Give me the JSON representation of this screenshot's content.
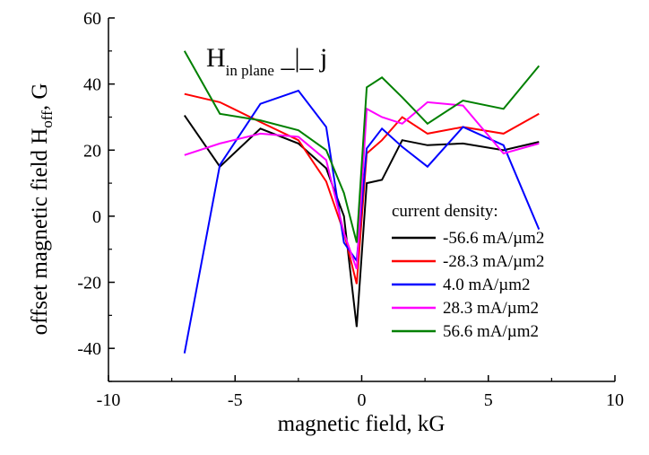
{
  "chart_data": {
    "type": "line",
    "xlabel": "magnetic field, kG",
    "ylabel_main": "offset magnetic field H",
    "ylabel_sub": "off",
    "ylabel_tail": ", G",
    "xlim": [
      -10,
      10
    ],
    "ylim": [
      -50,
      60
    ],
    "xticks": [
      -10,
      -5,
      0,
      5,
      10
    ],
    "yticks": [
      -40,
      -20,
      0,
      20,
      40,
      60
    ],
    "grid": false,
    "annotation": {
      "main": "H",
      "sub": "in plane",
      "tail": " _|_ j"
    },
    "legend": {
      "title": "current density:",
      "placement": "center-right"
    },
    "series": [
      {
        "name": "-56.6 mA/µm2",
        "color": "#000000",
        "x": [
          -7,
          -5.6,
          -4,
          -2.5,
          -1.4,
          -0.7,
          -0.2,
          0.2,
          0.8,
          1.6,
          2.6,
          4,
          5.6,
          7
        ],
        "y": [
          30.5,
          15,
          26.5,
          22,
          14.5,
          0,
          -33.5,
          10,
          11,
          23,
          21.5,
          22,
          20,
          22.5
        ]
      },
      {
        "name": "-28.3 mA/µm2",
        "color": "#ff0000",
        "x": [
          -7,
          -5.6,
          -4,
          -2.5,
          -1.4,
          -0.7,
          -0.2,
          0.2,
          0.8,
          1.6,
          2.6,
          4,
          5.6,
          7
        ],
        "y": [
          37,
          34.5,
          28.5,
          23,
          10.5,
          -5,
          -20.5,
          19,
          23,
          30,
          25,
          27,
          25,
          31
        ]
      },
      {
        "name": "4.0 mA/µm2",
        "color": "#0000ff",
        "x": [
          -7,
          -5.6,
          -4,
          -2.5,
          -1.4,
          -0.7,
          -0.2,
          0.2,
          0.8,
          1.6,
          2.6,
          4,
          5.6,
          7
        ],
        "y": [
          -41.5,
          15.5,
          34,
          38,
          27,
          -8,
          -13.5,
          20.5,
          26.5,
          21,
          15,
          27,
          21.5,
          -4
        ]
      },
      {
        "name": "28.3 mA/µm2",
        "color": "#ff00ff",
        "x": [
          -7,
          -5.6,
          -4,
          -2.5,
          -1.4,
          -0.7,
          -0.2,
          0.2,
          0.8,
          1.6,
          2.6,
          4,
          5.6,
          7
        ],
        "y": [
          18.5,
          22,
          25,
          24,
          17,
          -5,
          -16,
          32.5,
          30,
          28,
          34.5,
          33.5,
          19,
          22
        ]
      },
      {
        "name": "56.6 mA/µm2",
        "color": "#008000",
        "x": [
          -7,
          -5.6,
          -4,
          -2.5,
          -1.4,
          -0.7,
          -0.2,
          0.2,
          0.8,
          1.6,
          2.6,
          4,
          5.6,
          7
        ],
        "y": [
          50,
          31,
          29,
          26,
          20,
          7,
          -8,
          39,
          42,
          36,
          28,
          35,
          32.5,
          45.5
        ]
      }
    ]
  }
}
